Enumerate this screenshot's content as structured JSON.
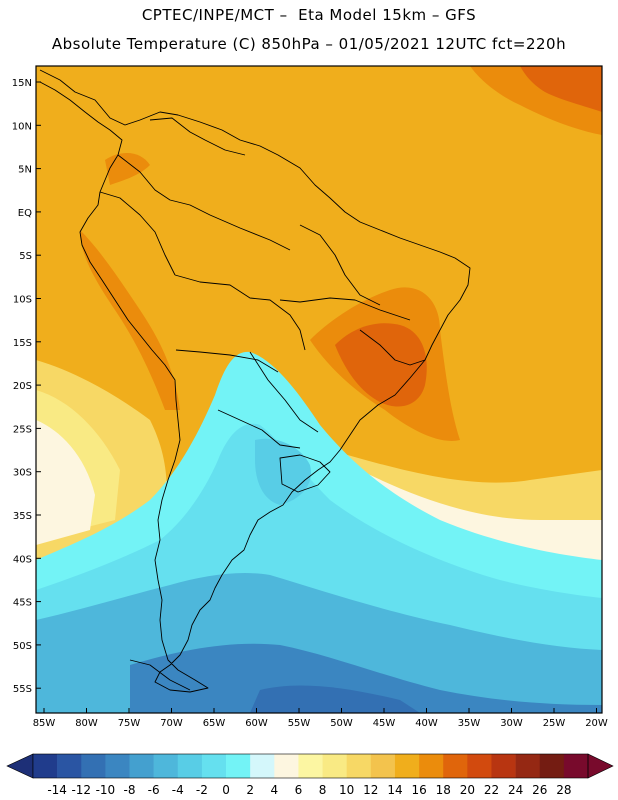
{
  "header": {
    "line1": "CPTEC/INPE/MCT –  Eta Model 15km – GFS",
    "line2": "Absolute Temperature (C) 850hPa – 01/05/2021 12UTC fct=220h"
  },
  "map": {
    "lat_labels": [
      "15N",
      "10N",
      "5N",
      "EQ",
      "5S",
      "10S",
      "15S",
      "20S",
      "25S",
      "30S",
      "35S",
      "40S",
      "45S",
      "50S",
      "55S"
    ],
    "lon_labels": [
      "85W",
      "80W",
      "75W",
      "70W",
      "65W",
      "60W",
      "55W",
      "50W",
      "45W",
      "40W",
      "35W",
      "30W",
      "25W",
      "20W"
    ]
  },
  "colorbar": {
    "labels": [
      "-14",
      "-12",
      "-10",
      "-8",
      "-6",
      "-4",
      "-2",
      "0",
      "2",
      "4",
      "6",
      "8",
      "10",
      "12",
      "14",
      "16",
      "18",
      "20",
      "22",
      "24",
      "26",
      "28"
    ],
    "colors": [
      "#203c8c",
      "#2a55a3",
      "#3370b3",
      "#3b86c1",
      "#44a0cf",
      "#4eb7db",
      "#58cde6",
      "#65e0ef",
      "#73f3f6",
      "#d4f7fb",
      "#fdf6e0",
      "#fcf6a2",
      "#f9ea84",
      "#f7d865",
      "#f3c34d",
      "#f0ae1c",
      "#eb8c0c",
      "#e0650b",
      "#d24a0e",
      "#b83511",
      "#952813",
      "#741c12",
      "#780a2c"
    ]
  }
}
